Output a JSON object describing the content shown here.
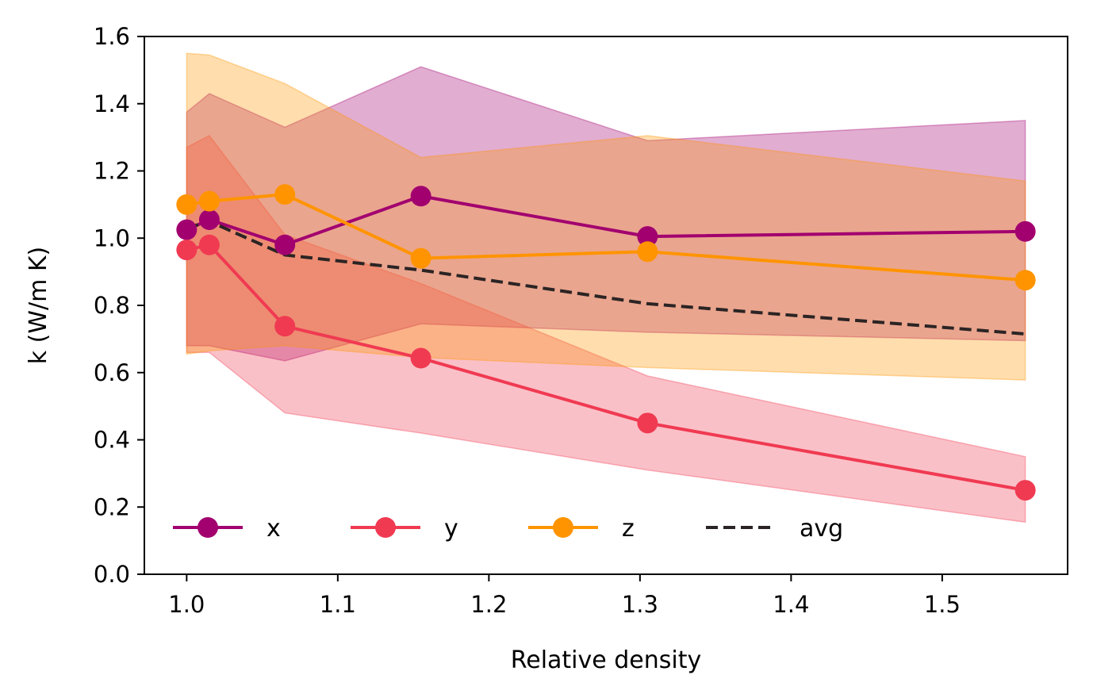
{
  "chart_data": {
    "type": "line",
    "title": "",
    "xlabel": "Relative density",
    "ylabel": "k (W/m K)",
    "xlim": [
      0.972,
      1.583
    ],
    "ylim": [
      0.0,
      1.6
    ],
    "xticks": [
      1.0,
      1.1,
      1.2,
      1.3,
      1.4,
      1.5
    ],
    "xtick_labels": [
      "1.0",
      "1.1",
      "1.2",
      "1.3",
      "1.4",
      "1.5"
    ],
    "yticks": [
      0.0,
      0.2,
      0.4,
      0.6,
      0.8,
      1.0,
      1.2,
      1.4,
      1.6
    ],
    "ytick_labels": [
      "0.0",
      "0.2",
      "0.4",
      "0.6",
      "0.8",
      "1.0",
      "1.2",
      "1.4",
      "1.6"
    ],
    "grid": false,
    "legend": {
      "placement": "lower-left",
      "columns": 4
    },
    "x": [
      1.0,
      1.015,
      1.065,
      1.155,
      1.305,
      1.555
    ],
    "series": [
      {
        "name": "x",
        "color": "#a2006f",
        "marker": "circle",
        "linestyle": "solid",
        "values": [
          1.025,
          1.055,
          0.98,
          1.125,
          1.005,
          1.02
        ],
        "band_upper": [
          1.375,
          1.43,
          1.33,
          1.51,
          1.29,
          1.35
        ],
        "band_lower": [
          0.68,
          0.68,
          0.635,
          0.745,
          0.72,
          0.695
        ],
        "band_alpha": 0.32
      },
      {
        "name": "y",
        "color": "#f03a52",
        "marker": "circle",
        "linestyle": "solid",
        "values": [
          0.965,
          0.98,
          0.738,
          0.643,
          0.45,
          0.25
        ],
        "band_upper": [
          1.27,
          1.305,
          1.01,
          0.865,
          0.59,
          0.35
        ],
        "band_lower": [
          0.66,
          0.66,
          0.48,
          0.42,
          0.31,
          0.155
        ],
        "band_alpha": 0.32
      },
      {
        "name": "z",
        "color": "#ff9400",
        "marker": "circle",
        "linestyle": "solid",
        "values": [
          1.1,
          1.11,
          1.13,
          0.94,
          0.96,
          0.875
        ],
        "band_upper": [
          1.55,
          1.545,
          1.46,
          1.24,
          1.305,
          1.17
        ],
        "band_lower": [
          0.655,
          0.665,
          0.68,
          0.645,
          0.615,
          0.578
        ],
        "band_alpha": 0.32
      },
      {
        "name": "avg",
        "color": "#2b2424",
        "marker": "none",
        "linestyle": "dashed",
        "values": [
          1.03,
          1.05,
          0.95,
          0.905,
          0.805,
          0.715
        ]
      }
    ]
  }
}
